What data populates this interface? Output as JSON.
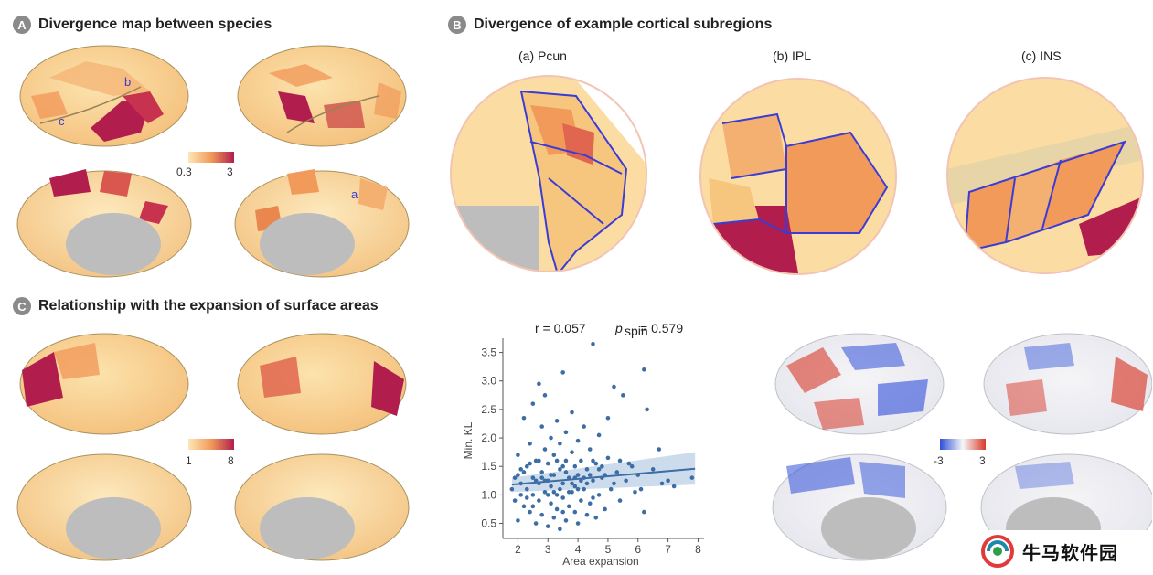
{
  "panels": {
    "a": {
      "letter": "A",
      "title": "Divergence map between species",
      "colorbar": {
        "min": "0.3",
        "max": "3"
      },
      "markers": {
        "b": "b",
        "c": "c",
        "a": "a"
      }
    },
    "b": {
      "letter": "B",
      "title": "Divergence of example cortical subregions",
      "subtitles": [
        "(a) Pcun",
        "(b) IPL",
        "(c) INS"
      ]
    },
    "c": {
      "letter": "C",
      "title": "Relationship with the expansion of surface areas",
      "colorbar_left": {
        "min": "1",
        "max": "8"
      },
      "colorbar_right": {
        "min": "-3",
        "max": "3"
      }
    }
  },
  "colors": {
    "divergence_low": "#fde7b5",
    "divergence_mid": "#f19a5a",
    "divergence_high": "#b11e4e",
    "diverging_neg": "#2f4fd8",
    "diverging_pos": "#d83a2a",
    "scatter_point": "#3c6ea5",
    "fit_line": "#3c6ea5",
    "fit_band": "#b7cde6"
  },
  "watermark": {
    "text": "牛马软件园"
  },
  "chart_data": {
    "type": "scatter",
    "title": "",
    "stats": {
      "r_label": "r = 0.057",
      "p_label": "p",
      "p_sub": "spin",
      "p_value": " = 0.579"
    },
    "xlabel": "Area expansion",
    "ylabel": "Min. KL",
    "xlim": [
      1.5,
      8.2
    ],
    "ylim": [
      0.3,
      3.75
    ],
    "xticks": [
      2,
      3,
      4,
      5,
      6,
      7,
      8
    ],
    "yticks": [
      0.5,
      1.0,
      1.5,
      2.0,
      2.5,
      3.0,
      3.5
    ],
    "fit": {
      "x": [
        1.8,
        7.9
      ],
      "y": [
        1.18,
        1.46
      ],
      "band_lo": [
        1.05,
        1.18
      ],
      "band_hi": [
        1.3,
        1.75
      ]
    },
    "points": [
      [
        1.8,
        1.1
      ],
      [
        1.9,
        0.9
      ],
      [
        1.9,
        1.3
      ],
      [
        2.0,
        1.7
      ],
      [
        2.0,
        0.55
      ],
      [
        2.1,
        1.0
      ],
      [
        2.1,
        1.2
      ],
      [
        2.2,
        2.35
      ],
      [
        2.2,
        0.8
      ],
      [
        2.3,
        1.5
      ],
      [
        2.3,
        1.1
      ],
      [
        2.4,
        1.9
      ],
      [
        2.4,
        0.7
      ],
      [
        2.5,
        2.6
      ],
      [
        2.5,
        1.3
      ],
      [
        2.5,
        1.0
      ],
      [
        2.6,
        1.6
      ],
      [
        2.6,
        0.5
      ],
      [
        2.7,
        2.95
      ],
      [
        2.7,
        1.2
      ],
      [
        2.7,
        0.9
      ],
      [
        2.8,
        2.2
      ],
      [
        2.8,
        1.4
      ],
      [
        2.8,
        0.65
      ],
      [
        2.9,
        2.75
      ],
      [
        2.9,
        1.05
      ],
      [
        2.9,
        1.8
      ],
      [
        3.0,
        1.25
      ],
      [
        3.0,
        0.45
      ],
      [
        3.0,
        1.55
      ],
      [
        3.1,
        2.0
      ],
      [
        3.1,
        0.85
      ],
      [
        3.1,
        1.15
      ],
      [
        3.2,
        1.7
      ],
      [
        3.2,
        0.6
      ],
      [
        3.2,
        1.35
      ],
      [
        3.3,
        2.3
      ],
      [
        3.3,
        1.0
      ],
      [
        3.3,
        0.75
      ],
      [
        3.4,
        1.45
      ],
      [
        3.4,
        1.9
      ],
      [
        3.4,
        0.4
      ],
      [
        3.5,
        1.2
      ],
      [
        3.5,
        3.15
      ],
      [
        3.5,
        0.95
      ],
      [
        3.6,
        1.6
      ],
      [
        3.6,
        2.1
      ],
      [
        3.6,
        0.55
      ],
      [
        3.7,
        1.3
      ],
      [
        3.7,
        0.8
      ],
      [
        3.8,
        1.05
      ],
      [
        3.8,
        1.75
      ],
      [
        3.8,
        2.45
      ],
      [
        3.9,
        0.7
      ],
      [
        3.9,
        1.5
      ],
      [
        3.9,
        1.15
      ],
      [
        4.0,
        1.95
      ],
      [
        4.0,
        0.5
      ],
      [
        4.0,
        1.35
      ],
      [
        4.1,
        0.9
      ],
      [
        4.1,
        1.6
      ],
      [
        4.2,
        2.2
      ],
      [
        4.2,
        1.1
      ],
      [
        4.3,
        0.65
      ],
      [
        4.3,
        1.45
      ],
      [
        4.4,
        1.8
      ],
      [
        4.4,
        0.85
      ],
      [
        4.5,
        3.65
      ],
      [
        4.5,
        1.25
      ],
      [
        4.6,
        0.6
      ],
      [
        4.6,
        1.55
      ],
      [
        4.7,
        2.05
      ],
      [
        4.7,
        1.0
      ],
      [
        4.8,
        1.3
      ],
      [
        4.9,
        0.75
      ],
      [
        5.0,
        1.65
      ],
      [
        5.0,
        2.35
      ],
      [
        5.1,
        1.1
      ],
      [
        5.2,
        2.9
      ],
      [
        5.3,
        1.4
      ],
      [
        5.4,
        0.9
      ],
      [
        5.5,
        2.75
      ],
      [
        5.6,
        1.25
      ],
      [
        5.8,
        1.5
      ],
      [
        6.0,
        1.35
      ],
      [
        6.2,
        3.2
      ],
      [
        6.2,
        0.7
      ],
      [
        6.3,
        2.5
      ],
      [
        6.5,
        1.45
      ],
      [
        6.7,
        1.8
      ],
      [
        6.8,
        1.2
      ],
      [
        7.0,
        1.25
      ],
      [
        7.2,
        1.15
      ],
      [
        7.8,
        1.3
      ],
      [
        2.2,
        1.4
      ],
      [
        2.6,
        1.25
      ],
      [
        3.0,
        1.0
      ],
      [
        3.4,
        1.1
      ],
      [
        3.8,
        1.2
      ],
      [
        4.2,
        1.3
      ],
      [
        2.4,
        1.55
      ],
      [
        2.8,
        1.3
      ],
      [
        3.2,
        1.05
      ],
      [
        3.6,
        1.4
      ],
      [
        4.0,
        1.1
      ],
      [
        4.4,
        1.35
      ],
      [
        4.8,
        1.5
      ],
      [
        5.2,
        1.2
      ],
      [
        2.0,
        1.35
      ],
      [
        2.3,
        0.95
      ],
      [
        2.9,
        1.25
      ],
      [
        3.3,
        1.6
      ],
      [
        3.7,
        1.05
      ],
      [
        4.1,
        1.25
      ],
      [
        4.5,
        0.95
      ],
      [
        4.9,
        1.35
      ],
      [
        5.7,
        1.55
      ],
      [
        6.1,
        1.1
      ],
      [
        2.1,
        1.45
      ],
      [
        2.7,
        1.6
      ],
      [
        3.1,
        1.35
      ],
      [
        3.5,
        1.5
      ],
      [
        3.9,
        1.3
      ],
      [
        4.3,
        1.2
      ],
      [
        4.7,
        1.45
      ],
      [
        5.4,
        1.6
      ],
      [
        2.5,
        0.8
      ],
      [
        3.5,
        0.7
      ],
      [
        4.5,
        1.6
      ],
      [
        5.9,
        1.05
      ]
    ]
  }
}
